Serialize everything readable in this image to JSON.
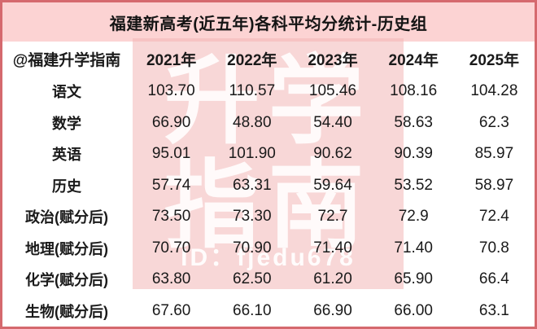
{
  "title": "福建新高考(近五年)各科平均分统计-历史组",
  "table": {
    "source_label": "@福建升学指南",
    "year_headers": [
      "2021年",
      "2022年",
      "2023年",
      "2024年",
      "2025年"
    ],
    "rows": [
      {
        "subject": "语文",
        "values": [
          "103.70",
          "110.57",
          "105.46",
          "108.16",
          "104.28"
        ]
      },
      {
        "subject": "数学",
        "values": [
          "66.90",
          "48.80",
          "54.40",
          "58.63",
          "62.3"
        ]
      },
      {
        "subject": "英语",
        "values": [
          "95.01",
          "101.90",
          "90.62",
          "90.39",
          "85.97"
        ]
      },
      {
        "subject": "历史",
        "values": [
          "57.74",
          "63.31",
          "59.64",
          "53.52",
          "58.97"
        ]
      },
      {
        "subject": "政治(赋分后)",
        "values": [
          "73.50",
          "73.30",
          "72.7",
          "72.9",
          "72.4"
        ]
      },
      {
        "subject": "地理(赋分后)",
        "values": [
          "70.70",
          "70.90",
          "71.40",
          "71.40",
          "70.8"
        ]
      },
      {
        "subject": "化学(赋分后)",
        "values": [
          "63.80",
          "62.50",
          "61.20",
          "65.90",
          "66.4"
        ]
      },
      {
        "subject": "生物(赋分后)",
        "values": [
          "67.60",
          "66.10",
          "66.90",
          "66.00",
          "63.1"
        ]
      }
    ]
  },
  "watermark": {
    "chars": "升学\n指南",
    "id_text": "ID：fjedu678"
  },
  "colors": {
    "border": "#d5696e",
    "title_band_bg": "#fcd3d3",
    "watermark_pink": "rgba(243,183,183,0.55)",
    "text": "#1a1a1a"
  },
  "chart_data": {
    "type": "table",
    "title": "福建新高考(近五年)各科平均分统计-历史组",
    "columns": [
      "@福建升学指南",
      "2021年",
      "2022年",
      "2023年",
      "2024年",
      "2025年"
    ],
    "rows": [
      {
        "subject": "语文",
        "values": [
          103.7,
          110.57,
          105.46,
          108.16,
          104.28
        ]
      },
      {
        "subject": "数学",
        "values": [
          66.9,
          48.8,
          54.4,
          58.63,
          62.3
        ]
      },
      {
        "subject": "英语",
        "values": [
          95.01,
          101.9,
          90.62,
          90.39,
          85.97
        ]
      },
      {
        "subject": "历史",
        "values": [
          57.74,
          63.31,
          59.64,
          53.52,
          58.97
        ]
      },
      {
        "subject": "政治(赋分后)",
        "values": [
          73.5,
          73.3,
          72.7,
          72.9,
          72.4
        ]
      },
      {
        "subject": "地理(赋分后)",
        "values": [
          70.7,
          70.9,
          71.4,
          71.4,
          70.8
        ]
      },
      {
        "subject": "化学(赋分后)",
        "values": [
          63.8,
          62.5,
          61.2,
          65.9,
          66.4
        ]
      },
      {
        "subject": "生物(赋分后)",
        "values": [
          67.6,
          66.1,
          66.9,
          66.0,
          63.1
        ]
      }
    ]
  }
}
